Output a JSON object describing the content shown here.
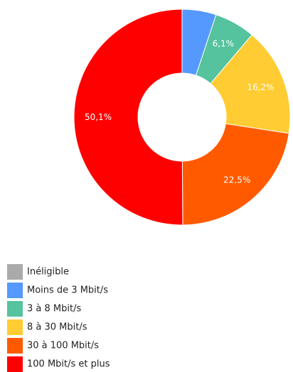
{
  "chart_data": {
    "type": "donut",
    "categories": [
      "Inéligible",
      "Moins de 3 Mbit/s",
      "3 à 8 Mbit/s",
      "8 à 30 Mbit/s",
      "30 à 100 Mbit/s",
      "100 Mbit/s et plus"
    ],
    "values": [
      0,
      5.1,
      6.1,
      16.2,
      22.5,
      50.1
    ],
    "value_labels": [
      null,
      null,
      "6,1%",
      "16,2%",
      "22,5%",
      "50,1%"
    ],
    "colors": [
      "#aaaaaa",
      "#5599ff",
      "#55c39d",
      "#ffcc33",
      "#ff5a00",
      "#ff0000"
    ],
    "legend": "bottom-left"
  }
}
